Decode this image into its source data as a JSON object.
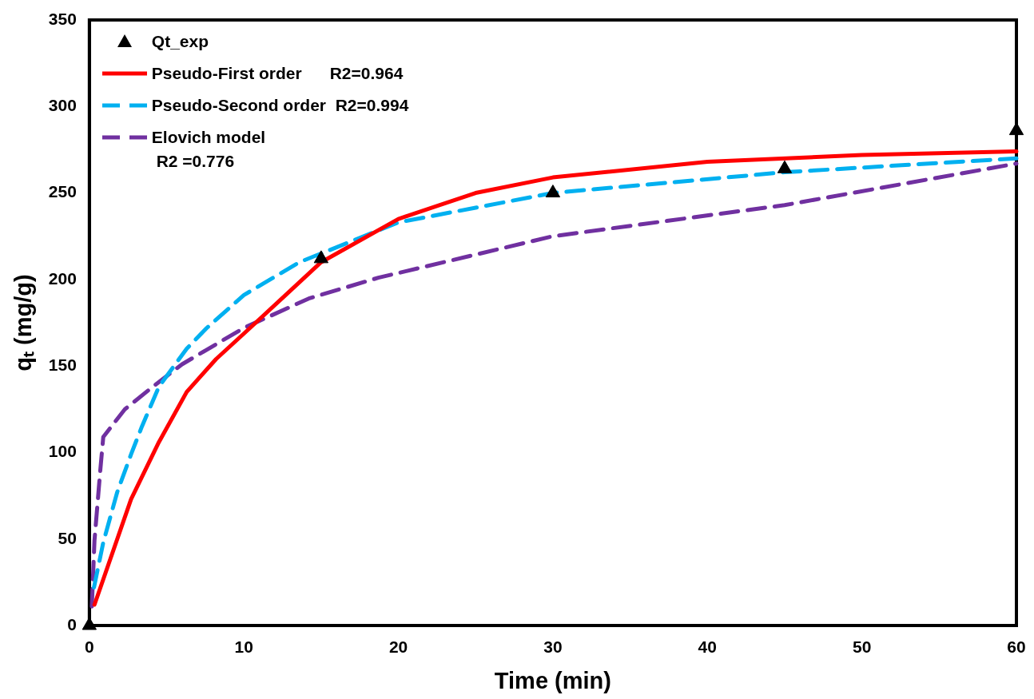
{
  "chart_data": {
    "type": "line",
    "xlabel": "Time (min)",
    "ylabel": "qₜ (mg/g)",
    "xlim": [
      0,
      60
    ],
    "xticks": [
      0,
      10,
      20,
      30,
      40,
      50,
      60
    ],
    "ylim": [
      0,
      350
    ],
    "yticks": [
      0,
      50,
      100,
      150,
      200,
      250,
      300,
      350
    ],
    "grid": false,
    "legend": "top left",
    "series": [
      {
        "name": "Qt_exp",
        "type": "scatter",
        "marker": "triangle",
        "color": "#000000",
        "x": [
          0,
          15,
          30,
          45,
          60
        ],
        "values": [
          0,
          212,
          250,
          264,
          286
        ]
      },
      {
        "name": "Pseudo-First order      R2=0.964",
        "line_style": "solid",
        "color": "#ff0000",
        "x": [
          0.33,
          2.7,
          4.5,
          6.3,
          8.2,
          10.4,
          12.7,
          15,
          20,
          25,
          30,
          40,
          50,
          60
        ],
        "values": [
          12,
          73,
          106,
          135,
          154,
          172,
          191,
          210,
          235,
          250,
          259,
          268,
          272,
          274
        ]
      },
      {
        "name": "Pseudo-Second order  R2=0.994",
        "line_style": "dashed",
        "color": "#00b0f0",
        "x": [
          0.3,
          0.9,
          1.8,
          2.7,
          3.4,
          4.5,
          6.3,
          7.6,
          10,
          13.6,
          20,
          30,
          45,
          60
        ],
        "values": [
          22,
          48,
          77,
          99,
          115,
          138,
          160,
          172,
          191,
          210,
          233,
          250,
          262,
          270
        ]
      },
      {
        "name": "Elovich model\n R2 =0.776",
        "line_style": "dashed",
        "color": "#7030a0",
        "x": [
          0.16,
          0.33,
          0.7,
          0.9,
          2.3,
          4.1,
          6,
          10,
          14.2,
          18.7,
          30,
          45,
          60
        ],
        "values": [
          11,
          49,
          89,
          109,
          125,
          138,
          151,
          172,
          189,
          201,
          225,
          243,
          267
        ]
      }
    ]
  }
}
